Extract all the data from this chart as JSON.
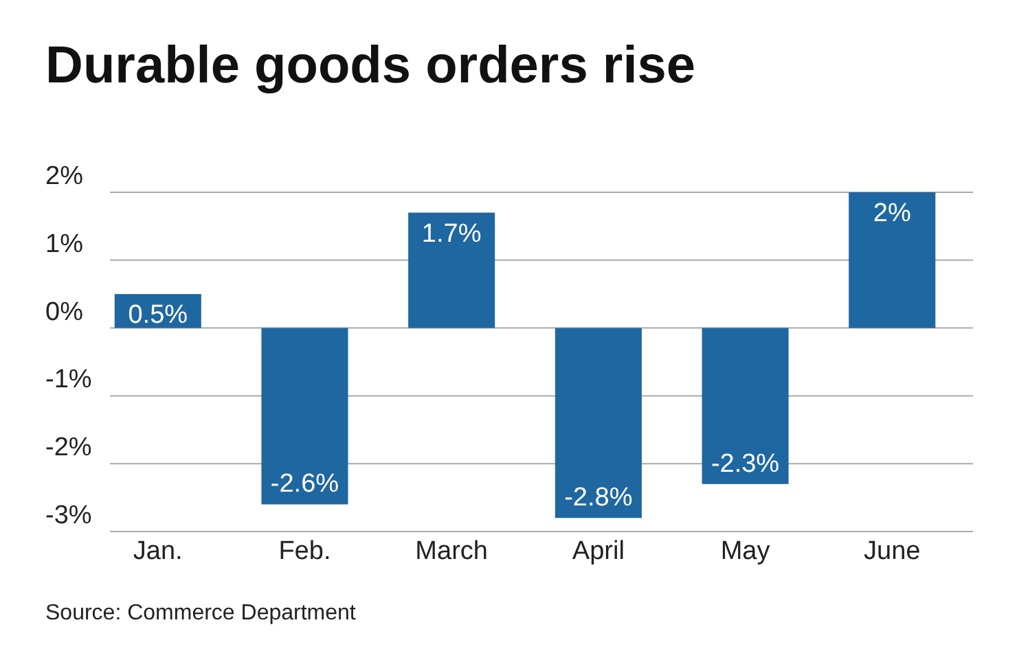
{
  "chart_data": {
    "type": "bar",
    "title": "Durable goods orders rise",
    "categories": [
      "Jan.",
      "Feb.",
      "March",
      "April",
      "May",
      "June"
    ],
    "values": [
      0.5,
      -2.6,
      1.7,
      -2.8,
      -2.3,
      2
    ],
    "value_labels": [
      "0.5%",
      "-2.6%",
      "1.7%",
      "-2.8%",
      "-2.3%",
      "2%"
    ],
    "color": "#1f67a1",
    "ylim": [
      -3,
      2
    ],
    "yticks": [
      {
        "value": -3,
        "label": "-3%"
      },
      {
        "value": -2,
        "label": "-2%"
      },
      {
        "value": -1,
        "label": "-1%"
      },
      {
        "value": 0,
        "label": "0%"
      },
      {
        "value": 1,
        "label": "1%"
      },
      {
        "value": 2,
        "label": "2%"
      }
    ],
    "grid": "y",
    "annotations": [
      "Source: Commerce Department"
    ]
  }
}
